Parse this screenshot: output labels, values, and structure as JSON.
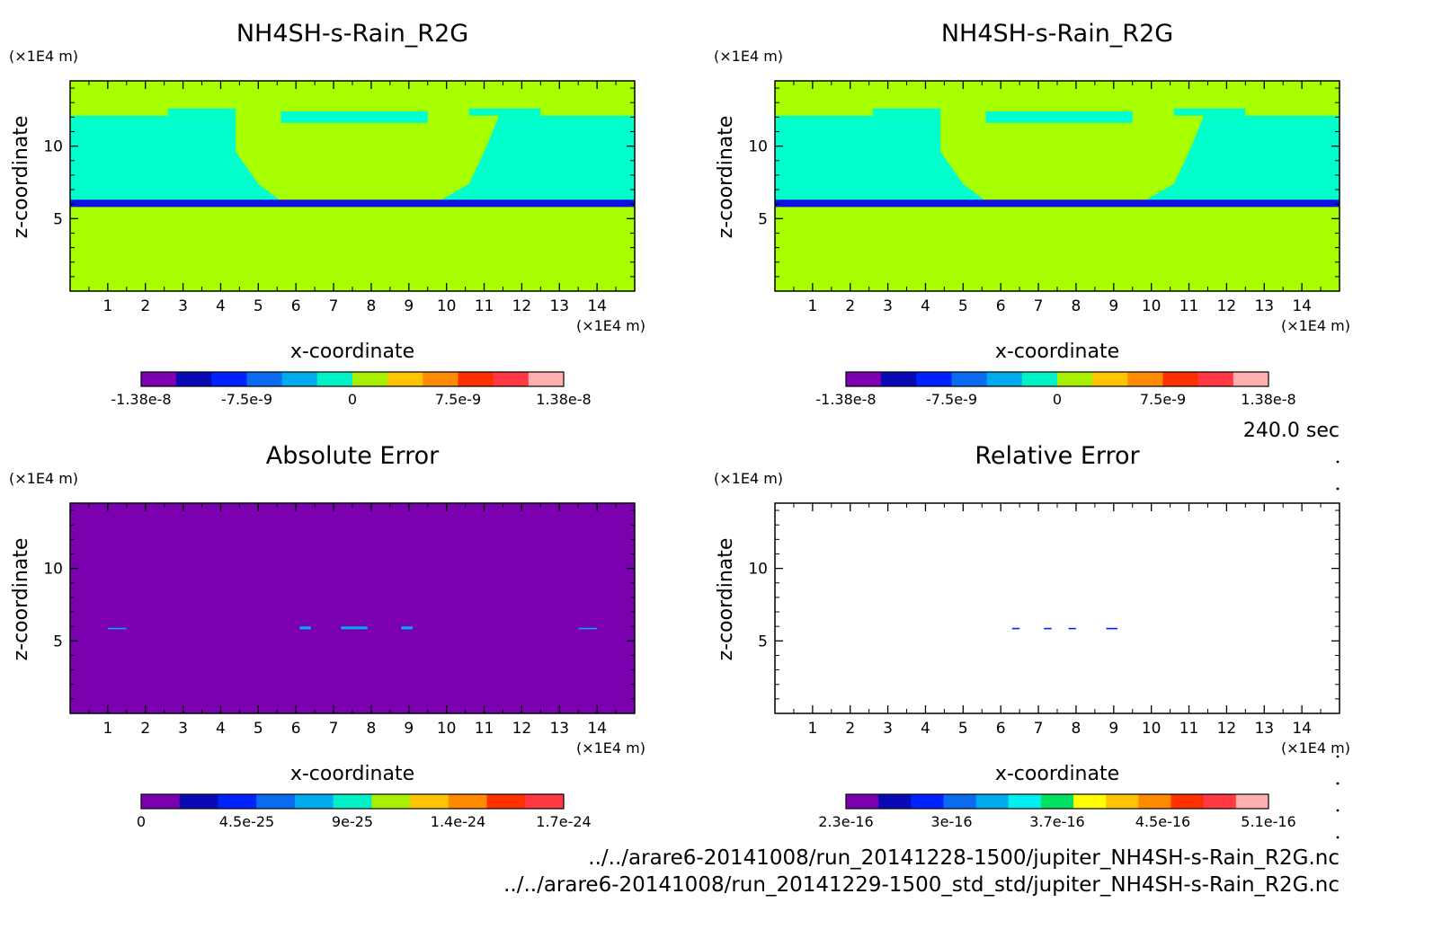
{
  "footer": {
    "file1": "../../arare6-20141008/run_20141228-1500/jupiter_NH4SH-s-Rain_R2G.nc",
    "file2": "../../arare6-20141008/run_20141229-1500_std_std/jupiter_NH4SH-s-Rain_R2G.nc"
  },
  "time_label": "240.0 sec",
  "chart_data": [
    {
      "type": "heatmap",
      "title": "NH4SH-s-Rain_R2G",
      "xlabel": "x-coordinate",
      "ylabel": "z-coordinate",
      "x_unit": "(×1E4 m)",
      "y_unit": "(×1E4 m)",
      "xlim": [
        0,
        15
      ],
      "ylim": [
        0,
        14.5
      ],
      "x_ticks": [
        "1",
        "2",
        "3",
        "4",
        "5",
        "6",
        "7",
        "8",
        "9",
        "10",
        "11",
        "12",
        "13",
        "14"
      ],
      "y_ticks": [
        "5",
        "10"
      ],
      "colorbar": {
        "colors": [
          "#7b00b0",
          "#0a0ab4",
          "#0022ff",
          "#0a6af0",
          "#00aaee",
          "#00f0c8",
          "#a8f000",
          "#ffc400",
          "#ff8a00",
          "#ff3000",
          "#ff3a44",
          "#ffb0b0"
        ],
        "tick_labels": [
          "-1.38e-8",
          "-7.5e-9",
          "0",
          "7.5e-9",
          "1.38e-8"
        ]
      },
      "field": {
        "background": "#a8ff00",
        "regions": [
          {
            "color": "#00ffcc",
            "x": [
              0.0,
              4.4,
              4.4,
              5.0,
              5.6,
              9.8,
              10.6,
              11.0,
              11.4,
              15.0,
              15.0,
              0.0
            ],
            "y": [
              12.1,
              12.1,
              9.6,
              7.4,
              6.2,
              6.2,
              7.4,
              9.6,
              12.1,
              12.1,
              6.2,
              6.2
            ]
          },
          {
            "color": "#1010e0",
            "x": [
              0,
              15,
              15,
              0
            ],
            "y": [
              6.3,
              6.3,
              5.8,
              5.8
            ]
          },
          {
            "color": "#00ffcc",
            "x": [
              2.6,
              4.4,
              4.4,
              2.6
            ],
            "y": [
              12.6,
              12.6,
              12.1,
              12.1
            ]
          },
          {
            "color": "#00ffcc",
            "x": [
              5.6,
              9.5,
              9.5,
              5.6
            ],
            "y": [
              12.4,
              12.4,
              11.6,
              11.6
            ]
          },
          {
            "color": "#00ffcc",
            "x": [
              10.6,
              12.5,
              12.5,
              10.6
            ],
            "y": [
              12.6,
              12.6,
              12.1,
              12.1
            ]
          }
        ]
      }
    },
    {
      "type": "heatmap",
      "title": "NH4SH-s-Rain_R2G",
      "xlabel": "x-coordinate",
      "ylabel": "z-coordinate",
      "x_unit": "(×1E4 m)",
      "y_unit": "(×1E4 m)",
      "xlim": [
        0,
        15
      ],
      "ylim": [
        0,
        14.5
      ],
      "x_ticks": [
        "1",
        "2",
        "3",
        "4",
        "5",
        "6",
        "7",
        "8",
        "9",
        "10",
        "11",
        "12",
        "13",
        "14"
      ],
      "y_ticks": [
        "5",
        "10"
      ],
      "colorbar": {
        "colors": [
          "#7b00b0",
          "#0a0ab4",
          "#0022ff",
          "#0a6af0",
          "#00aaee",
          "#00f0c8",
          "#a8f000",
          "#ffc400",
          "#ff8a00",
          "#ff3000",
          "#ff3a44",
          "#ffb0b0"
        ],
        "tick_labels": [
          "-1.38e-8",
          "-7.5e-9",
          "0",
          "7.5e-9",
          "1.38e-8"
        ]
      },
      "field": {
        "background": "#a8ff00",
        "regions": [
          {
            "color": "#00ffcc",
            "x": [
              0.0,
              4.4,
              4.4,
              5.0,
              5.6,
              9.8,
              10.6,
              11.0,
              11.4,
              15.0,
              15.0,
              0.0
            ],
            "y": [
              12.1,
              12.1,
              9.6,
              7.4,
              6.2,
              6.2,
              7.4,
              9.6,
              12.1,
              12.1,
              6.2,
              6.2
            ]
          },
          {
            "color": "#1010e0",
            "x": [
              0,
              15,
              15,
              0
            ],
            "y": [
              6.3,
              6.3,
              5.8,
              5.8
            ]
          },
          {
            "color": "#00ffcc",
            "x": [
              2.6,
              4.4,
              4.4,
              2.6
            ],
            "y": [
              12.6,
              12.6,
              12.1,
              12.1
            ]
          },
          {
            "color": "#00ffcc",
            "x": [
              5.6,
              9.5,
              9.5,
              5.6
            ],
            "y": [
              12.4,
              12.4,
              11.6,
              11.6
            ]
          },
          {
            "color": "#00ffcc",
            "x": [
              10.6,
              12.5,
              12.5,
              10.6
            ],
            "y": [
              12.6,
              12.6,
              12.1,
              12.1
            ]
          }
        ]
      }
    },
    {
      "type": "heatmap",
      "title": "Absolute Error",
      "xlabel": "x-coordinate",
      "ylabel": "z-coordinate",
      "x_unit": "(×1E4 m)",
      "y_unit": "(×1E4 m)",
      "xlim": [
        0,
        15
      ],
      "ylim": [
        0,
        14.5
      ],
      "x_ticks": [
        "1",
        "2",
        "3",
        "4",
        "5",
        "6",
        "7",
        "8",
        "9",
        "10",
        "11",
        "12",
        "13",
        "14"
      ],
      "y_ticks": [
        "5",
        "10"
      ],
      "colorbar": {
        "colors": [
          "#7b00b0",
          "#0a0ab4",
          "#0022ff",
          "#0a6af0",
          "#00aaee",
          "#00f0c8",
          "#a8f000",
          "#ffc400",
          "#ff8a00",
          "#ff3000",
          "#ff3a44"
        ],
        "tick_labels": [
          "0",
          "4.5e-25",
          "9e-25",
          "1.4e-24",
          "1.7e-24"
        ]
      },
      "field": {
        "background": "#7b00b0",
        "regions": [
          {
            "color": "#00aaee",
            "x": [
              1.0,
              1.5,
              1.5,
              1.0
            ],
            "y": [
              5.9,
              5.9,
              5.8,
              5.8
            ]
          },
          {
            "color": "#00aaee",
            "x": [
              6.1,
              6.4,
              6.4,
              6.1
            ],
            "y": [
              6.0,
              6.0,
              5.8,
              5.8
            ]
          },
          {
            "color": "#00aaee",
            "x": [
              7.2,
              7.9,
              7.9,
              7.2
            ],
            "y": [
              6.0,
              6.0,
              5.8,
              5.8
            ]
          },
          {
            "color": "#00aaee",
            "x": [
              8.8,
              9.1,
              9.1,
              8.8
            ],
            "y": [
              6.0,
              6.0,
              5.8,
              5.8
            ]
          },
          {
            "color": "#00aaee",
            "x": [
              13.5,
              14.0,
              14.0,
              13.5
            ],
            "y": [
              5.9,
              5.9,
              5.8,
              5.8
            ]
          }
        ]
      }
    },
    {
      "type": "heatmap",
      "title": "Relative Error",
      "xlabel": "x-coordinate",
      "ylabel": "z-coordinate",
      "x_unit": "(×1E4 m)",
      "y_unit": "(×1E4 m)",
      "xlim": [
        0,
        15
      ],
      "ylim": [
        0,
        14.5
      ],
      "x_ticks": [
        "1",
        "2",
        "3",
        "4",
        "5",
        "6",
        "7",
        "8",
        "9",
        "10",
        "11",
        "12",
        "13",
        "14"
      ],
      "y_ticks": [
        "5",
        "10"
      ],
      "colorbar": {
        "colors": [
          "#7b00b0",
          "#0a0ab4",
          "#0022ff",
          "#0a6af0",
          "#00aaee",
          "#00f0f0",
          "#00e060",
          "#ffff00",
          "#ffc400",
          "#ff8a00",
          "#ff3000",
          "#ff3a44",
          "#ffb0b0"
        ],
        "tick_labels": [
          "2.3e-16",
          "3e-16",
          "3.7e-16",
          "4.5e-16",
          "5.1e-16"
        ]
      },
      "field": {
        "background": "#ffffff",
        "regions": [
          {
            "color": "#0022ff",
            "x": [
              6.3,
              6.5,
              6.5,
              6.3
            ],
            "y": [
              5.9,
              5.9,
              5.8,
              5.8
            ]
          },
          {
            "color": "#0022ff",
            "x": [
              7.15,
              7.35,
              7.35,
              7.15
            ],
            "y": [
              5.9,
              5.9,
              5.8,
              5.8
            ]
          },
          {
            "color": "#0022ff",
            "x": [
              7.8,
              8.0,
              8.0,
              7.8
            ],
            "y": [
              5.9,
              5.9,
              5.8,
              5.8
            ]
          },
          {
            "color": "#0022ff",
            "x": [
              8.8,
              9.1,
              9.1,
              8.8
            ],
            "y": [
              5.9,
              5.9,
              5.8,
              5.8
            ]
          }
        ]
      }
    }
  ]
}
